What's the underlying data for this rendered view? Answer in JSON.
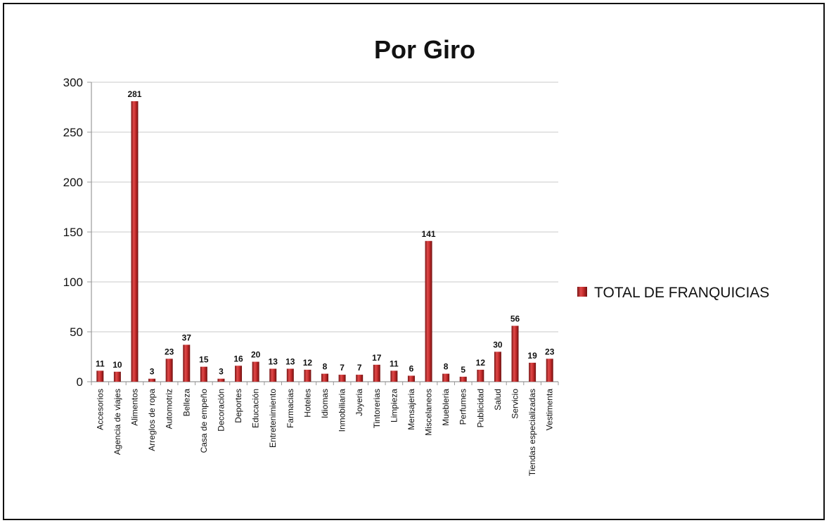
{
  "chart_data": {
    "type": "bar",
    "title": "Por Giro",
    "xlabel": "",
    "ylabel": "",
    "ylim": [
      0,
      300
    ],
    "yticks": [
      "0",
      "50",
      "100",
      "150",
      "200",
      "250",
      "300"
    ],
    "grid": true,
    "legend_position": "right",
    "categories": [
      "Accesorios",
      "Agencia de viajes",
      "Alimentos",
      "Arreglos de ropa",
      "Automotriz",
      "Belleza",
      "Casa de empeño",
      "Decoración",
      "Deportes",
      "Educación",
      "Entretenimiento",
      "Farmacias",
      "Hoteles",
      "Idiomas",
      "Inmobiliaria",
      "Joyeria",
      "Tintorerias",
      "Limpieza",
      "Mensajeria",
      "Miscelaneos",
      "Muebleria",
      "Perfumes",
      "Publicidad",
      "Salud",
      "Servicio",
      "Tiendas especializadas",
      "Vestimenta"
    ],
    "series": [
      {
        "name": "TOTAL DE FRANQUICIAS",
        "color": "#b22222",
        "values": [
          11,
          10,
          281,
          3,
          23,
          37,
          15,
          3,
          16,
          20,
          13,
          13,
          12,
          8,
          7,
          7,
          17,
          11,
          6,
          141,
          8,
          5,
          12,
          30,
          56,
          19,
          23
        ]
      }
    ]
  }
}
